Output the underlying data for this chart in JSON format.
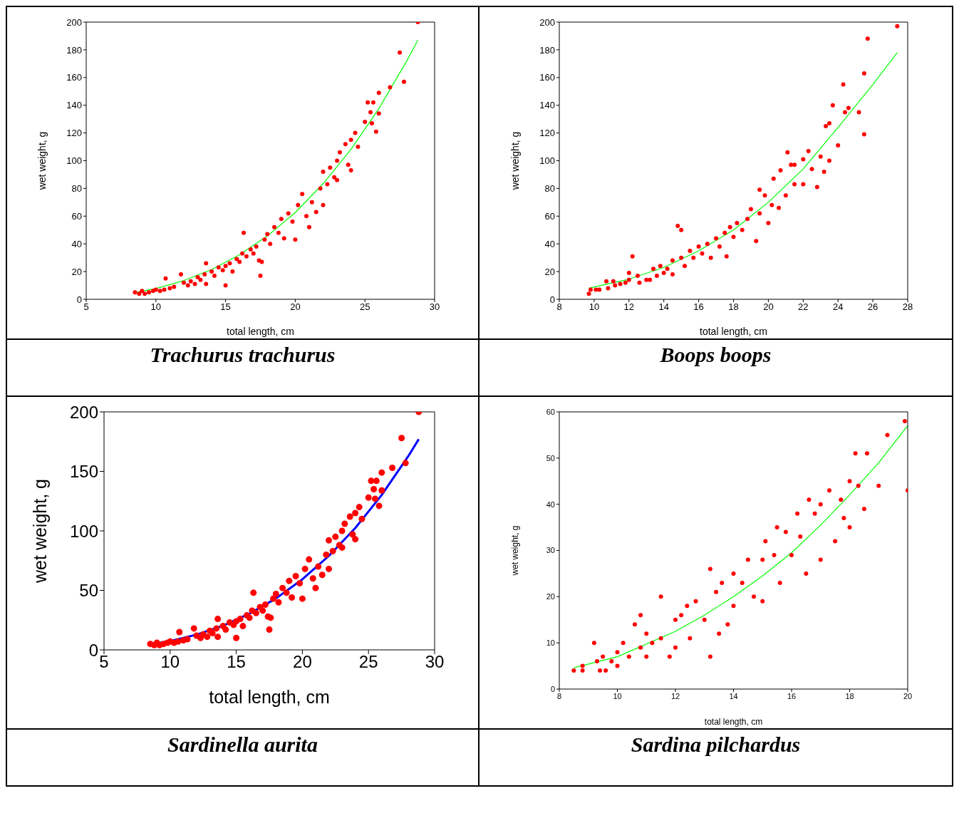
{
  "chart_data": [
    {
      "type": "scatter",
      "title": "Trachurus trachurus",
      "xlabel": "total length, cm",
      "ylabel": "wet weight, g",
      "xlim": [
        5,
        30
      ],
      "xticks": [
        5,
        10,
        15,
        20,
        25,
        30
      ],
      "ylim": [
        0,
        200
      ],
      "yticks": [
        0,
        20,
        40,
        60,
        80,
        100,
        120,
        140,
        160,
        180,
        200
      ],
      "marker": "circle",
      "series": [
        {
          "color": "#ff0000",
          "x": [
            8.5,
            8.8,
            9,
            9.2,
            9.5,
            9.8,
            10,
            10.3,
            10.6,
            10.7,
            11,
            11.3,
            11.8,
            12,
            12.3,
            12.5,
            12.8,
            13,
            13.2,
            13.5,
            13.6,
            13.6,
            14,
            14.2,
            14.5,
            14.8,
            15,
            15,
            15.3,
            15.5,
            15.8,
            16,
            16.2,
            16.3,
            16.5,
            16.8,
            17,
            17.2,
            17.4,
            17.5,
            17.6,
            17.8,
            18,
            18.2,
            18.5,
            18.8,
            19,
            19.2,
            19.5,
            19.8,
            20,
            20.2,
            20.5,
            20.8,
            21,
            21.2,
            21.5,
            21.8,
            22,
            22,
            22.3,
            22.5,
            22.8,
            23,
            23,
            23.2,
            23.6,
            23.8,
            24,
            24,
            24.3,
            24.5,
            25,
            25.2,
            25.4,
            25.5,
            25.6,
            25.8,
            26,
            26,
            26.8,
            27.5,
            27.8,
            28.8
          ],
          "values": [
            5,
            4,
            6,
            4,
            5,
            6,
            7,
            6,
            7,
            15,
            8,
            9,
            18,
            12,
            10,
            13,
            11,
            16,
            14,
            18,
            26,
            11,
            20,
            17,
            23,
            21,
            10,
            24,
            26,
            20,
            29,
            27,
            33,
            48,
            31,
            36,
            33,
            38,
            28,
            17,
            27,
            43,
            47,
            40,
            52,
            48,
            58,
            44,
            62,
            56,
            43,
            68,
            76,
            60,
            52,
            70,
            63,
            80,
            92,
            68,
            83,
            95,
            88,
            100,
            86,
            106,
            112,
            97,
            115,
            93,
            120,
            110,
            128,
            142,
            135,
            127,
            142,
            121,
            149,
            134,
            153,
            178,
            157,
            200
          ]
        },
        {
          "type": "line",
          "color": "#00ff00",
          "marker": "none",
          "x": [
            8.5,
            10,
            12,
            14,
            16,
            18,
            20,
            22,
            24,
            26,
            28,
            28.8
          ],
          "values": [
            4.8,
            7.8,
            13.5,
            21.5,
            32.1,
            45.7,
            62.6,
            83.4,
            108.2,
            137.6,
            171.9,
            187
          ]
        }
      ]
    },
    {
      "type": "scatter",
      "title": "Boops boops",
      "xlabel": "total length, cm",
      "ylabel": "wet weight, g",
      "xlim": [
        8,
        28
      ],
      "xticks": [
        8,
        10,
        12,
        14,
        16,
        18,
        20,
        22,
        24,
        26,
        28
      ],
      "ylim": [
        0,
        200
      ],
      "yticks": [
        0,
        20,
        40,
        60,
        80,
        100,
        120,
        140,
        160,
        180,
        200
      ],
      "marker": "circle",
      "series": [
        {
          "color": "#ff0000",
          "x": [
            9.7,
            9.8,
            10.1,
            10.3,
            10.7,
            10.8,
            11.1,
            11.2,
            11.5,
            11.8,
            12,
            12,
            12.2,
            12.5,
            12.6,
            13,
            13.2,
            13.4,
            13.6,
            13.8,
            14,
            14.2,
            14.5,
            14.5,
            14.8,
            15,
            15,
            15.2,
            15.5,
            15.7,
            16,
            16.2,
            16.5,
            16.7,
            17,
            17.2,
            17.5,
            17.6,
            17.8,
            18,
            18.2,
            18.5,
            18.8,
            19,
            19.3,
            19.5,
            19.5,
            19.8,
            20,
            20.2,
            20.3,
            20.6,
            20.7,
            21,
            21.1,
            21.3,
            21.5,
            21.5,
            22,
            22,
            22.3,
            22.5,
            22.8,
            23,
            23.2,
            23.3,
            23.5,
            23.5,
            23.7,
            24,
            24.3,
            24.4,
            24.6,
            25.2,
            25.5,
            25.5,
            25.7,
            27.4
          ],
          "values": [
            4,
            7,
            7,
            7,
            13,
            8,
            13,
            10,
            11,
            12,
            19,
            14,
            31,
            17,
            12,
            14,
            14,
            22,
            17,
            24,
            19,
            22,
            28,
            18,
            53,
            50,
            30,
            24,
            35,
            30,
            38,
            33,
            40,
            30,
            44,
            38,
            48,
            31,
            52,
            45,
            55,
            50,
            58,
            65,
            42,
            62,
            79,
            75,
            55,
            68,
            87,
            66,
            93,
            75,
            106,
            97,
            83,
            97,
            101,
            83,
            107,
            94,
            81,
            103,
            92,
            125,
            127,
            100,
            140,
            111,
            155,
            135,
            138,
            135,
            119,
            163,
            188,
            197
          ]
        },
        {
          "type": "line",
          "color": "#00ff00",
          "marker": "none",
          "x": [
            9.7,
            12,
            14,
            16,
            18,
            20,
            22,
            24,
            26,
            27.4
          ],
          "values": [
            8,
            14.5,
            23,
            35,
            50,
            70,
            94,
            124,
            155,
            178
          ]
        }
      ]
    },
    {
      "type": "scatter",
      "title": "Sardinella aurita",
      "xlabel": "total length, cm",
      "ylabel": "wet weight, g",
      "xlim": [
        5,
        30
      ],
      "xticks": [
        5,
        10,
        15,
        20,
        25,
        30
      ],
      "ylim": [
        0,
        200
      ],
      "yticks": [
        0,
        50,
        100,
        150,
        200
      ],
      "marker": "circle",
      "series": [
        {
          "color": "#ff0000",
          "x": [
            8.5,
            8.8,
            9,
            9.2,
            9.5,
            9.8,
            10,
            10.3,
            10.6,
            10.7,
            11,
            11.3,
            11.8,
            12,
            12.3,
            12.5,
            12.8,
            13,
            13.2,
            13.5,
            13.6,
            13.6,
            14,
            14.2,
            14.5,
            14.8,
            15,
            15,
            15.3,
            15.5,
            15.8,
            16,
            16.2,
            16.3,
            16.5,
            16.8,
            17,
            17.2,
            17.4,
            17.5,
            17.6,
            17.8,
            18,
            18.2,
            18.5,
            18.8,
            19,
            19.2,
            19.5,
            19.8,
            20,
            20.2,
            20.5,
            20.8,
            21,
            21.2,
            21.5,
            21.8,
            22,
            22,
            22.3,
            22.5,
            22.8,
            23,
            23,
            23.2,
            23.6,
            23.8,
            24,
            24,
            24.3,
            24.5,
            25,
            25.2,
            25.4,
            25.5,
            25.6,
            25.8,
            26,
            26,
            26.8,
            27.5,
            27.8,
            28.8
          ],
          "values": [
            5,
            4,
            6,
            4,
            5,
            6,
            7,
            6,
            7,
            15,
            8,
            9,
            18,
            12,
            10,
            13,
            11,
            16,
            14,
            18,
            26,
            11,
            20,
            17,
            23,
            21,
            10,
            24,
            26,
            20,
            29,
            27,
            33,
            48,
            31,
            36,
            33,
            38,
            28,
            17,
            27,
            43,
            47,
            40,
            52,
            48,
            58,
            44,
            62,
            56,
            43,
            68,
            76,
            60,
            52,
            70,
            63,
            80,
            92,
            68,
            83,
            95,
            88,
            100,
            86,
            106,
            112,
            97,
            115,
            93,
            120,
            110,
            128,
            142,
            135,
            127,
            142,
            121,
            149,
            134,
            153,
            178,
            157,
            200
          ]
        },
        {
          "type": "line",
          "color": "#0000ff",
          "marker": "none",
          "x": [
            8.5,
            10,
            12,
            14,
            16,
            18,
            20,
            22,
            24,
            26,
            28,
            28.8
          ],
          "values": [
            4.6,
            7.4,
            12.8,
            20.3,
            30.4,
            43.2,
            59.3,
            78.9,
            102.4,
            130.2,
            162.6,
            177
          ]
        }
      ]
    },
    {
      "type": "scatter",
      "title": "Sardina pilchardus",
      "xlabel": "total length, cm",
      "ylabel": "wet weight, g",
      "xlim": [
        8,
        20
      ],
      "xticks": [
        8,
        10,
        12,
        14,
        16,
        18,
        20
      ],
      "ylim": [
        0,
        60
      ],
      "yticks": [
        0,
        10,
        20,
        30,
        40,
        50,
        60
      ],
      "marker": "circle",
      "series": [
        {
          "color": "#ff0000",
          "x": [
            8.5,
            8.8,
            8.8,
            9.2,
            9.3,
            9.4,
            9.5,
            9.6,
            9.8,
            10,
            10,
            10.2,
            10.4,
            10.6,
            10.8,
            10.8,
            11,
            11,
            11.2,
            11.5,
            11.5,
            11.8,
            12,
            12,
            12.2,
            12.4,
            12.5,
            12.7,
            13,
            13.2,
            13.2,
            13.4,
            13.5,
            13.6,
            13.8,
            14,
            14,
            14.3,
            14.5,
            14.7,
            15,
            15,
            15.1,
            15.4,
            15.5,
            15.6,
            15.8,
            16,
            16.2,
            16.3,
            16.5,
            16.6,
            16.8,
            17,
            17,
            17.3,
            17.5,
            17.7,
            17.8,
            18,
            18,
            18.2,
            18.3,
            18.5,
            18.6,
            19,
            19.3,
            19.9,
            20
          ],
          "values": [
            4,
            5,
            4,
            10,
            6,
            4,
            7,
            4,
            6,
            8,
            5,
            10,
            7,
            14,
            16,
            9,
            12,
            7,
            10,
            20,
            11,
            7,
            15,
            9,
            16,
            18,
            11,
            19,
            15,
            26,
            7,
            21,
            12,
            23,
            14,
            25,
            18,
            23,
            28,
            20,
            28,
            19,
            32,
            29,
            35,
            23,
            34,
            29,
            38,
            33,
            25,
            41,
            38,
            40,
            28,
            43,
            32,
            41,
            37,
            45,
            35,
            51,
            44,
            39,
            51,
            44,
            55,
            58,
            43
          ]
        },
        {
          "type": "line",
          "color": "#00ff00",
          "marker": "none",
          "x": [
            8.5,
            10,
            12,
            13,
            14,
            15,
            16,
            17,
            18,
            19,
            20
          ],
          "values": [
            4.6,
            7,
            12.5,
            16,
            20,
            24.5,
            29.5,
            35.5,
            42,
            49,
            57
          ]
        }
      ]
    }
  ]
}
